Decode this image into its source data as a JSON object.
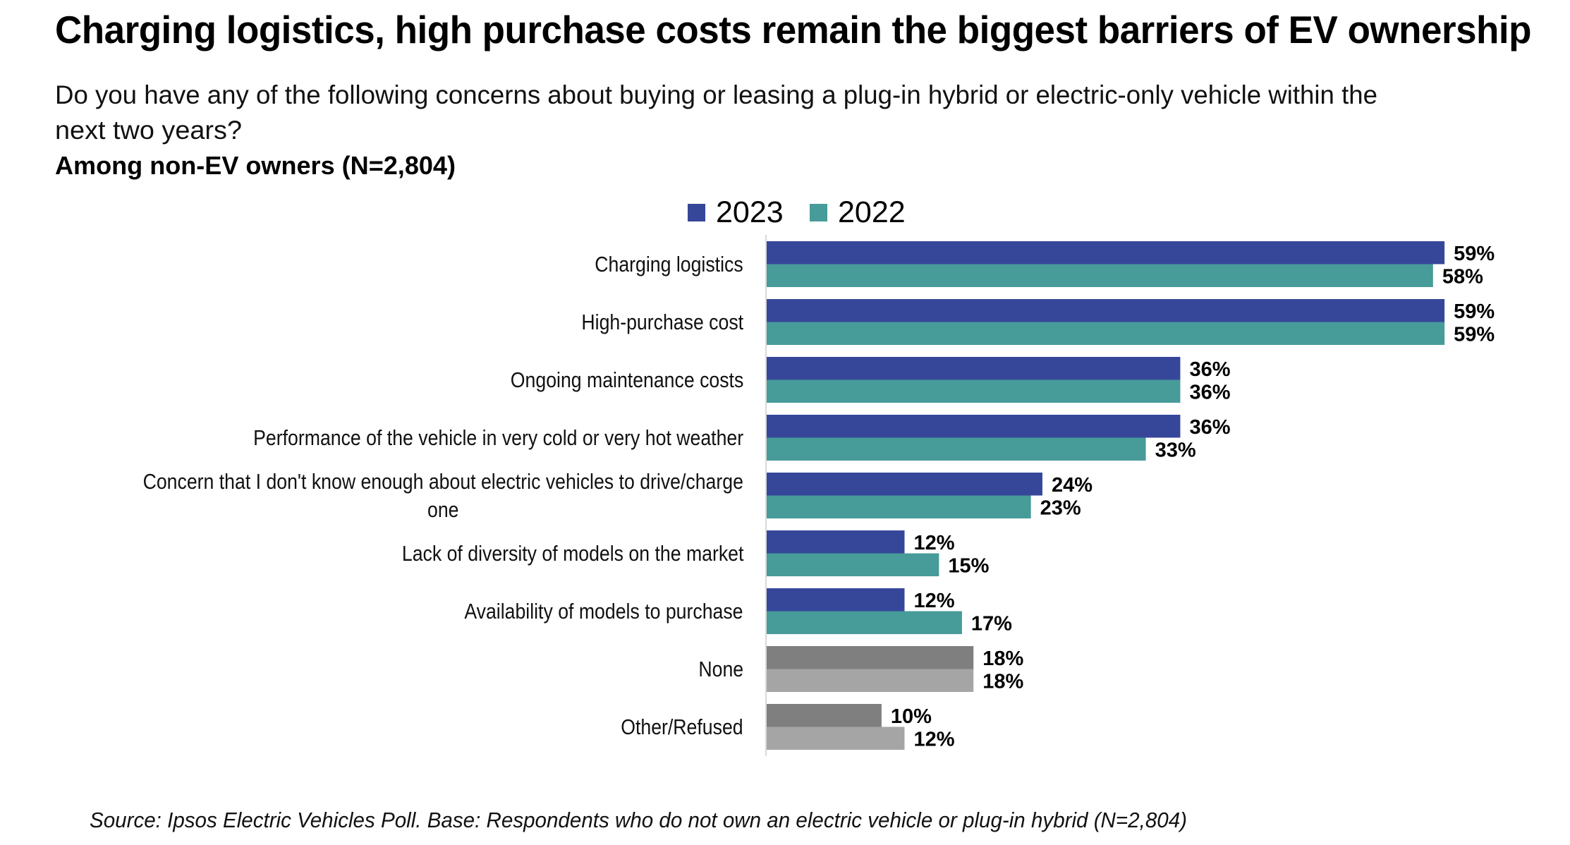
{
  "header": {
    "title": "Charging logistics, high purchase costs remain the biggest barriers of EV ownership",
    "question_line1": "Do you have any of the following concerns about buying or leasing a plug-in hybrid or electric-only vehicle within the",
    "question_line2": "next two years?",
    "base": "Among non-EV owners (N=2,804)"
  },
  "footnote": "Source: Ipsos Electric Vehicles Poll. Base: Respondents who do not own an electric vehicle or plug-in hybrid (N=2,804)",
  "colors": {
    "2023": "#36479a",
    "2022": "#479b99",
    "neutral_2023": "#7f7f7f",
    "neutral_2022": "#a5a5a5",
    "axis": "#d9d9d9",
    "label": "#000000"
  },
  "chart_data": {
    "type": "bar",
    "orientation": "horizontal",
    "title": "Charging logistics, high purchase costs remain the biggest barriers of EV ownership",
    "xlabel": "",
    "ylabel": "",
    "value_suffix": "%",
    "xlim": [
      0,
      60
    ],
    "grid": false,
    "legend": {
      "position": "top",
      "entries": [
        "2023",
        "2022"
      ]
    },
    "categories": [
      [
        "Charging logistics"
      ],
      [
        "High-purchase cost"
      ],
      [
        "Ongoing maintenance costs"
      ],
      [
        "Performance of the vehicle in very cold or very hot weather"
      ],
      [
        "Concern that I don't know enough about electric vehicles to drive/charge",
        "one"
      ],
      [
        "Lack of diversity of models on the market"
      ],
      [
        "Availability of models to purchase"
      ],
      [
        "None"
      ],
      [
        "Other/Refused"
      ]
    ],
    "neutral_categories": [
      "None",
      "Other/Refused"
    ],
    "series": [
      {
        "name": "2023",
        "values": [
          59,
          59,
          36,
          36,
          24,
          12,
          12,
          18,
          10
        ]
      },
      {
        "name": "2022",
        "values": [
          58,
          59,
          36,
          33,
          23,
          15,
          17,
          18,
          12
        ]
      }
    ]
  }
}
